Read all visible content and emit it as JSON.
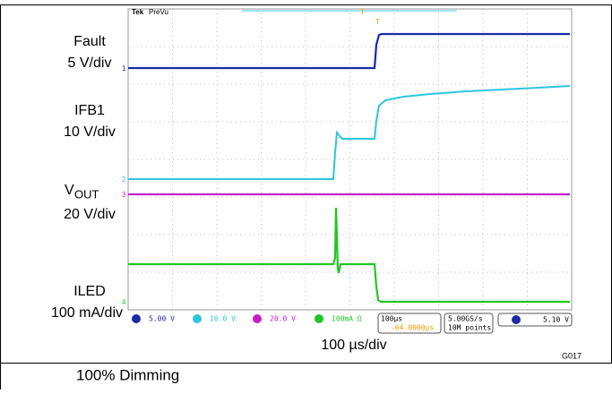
{
  "scope": {
    "brand": "Tek",
    "mode": "PreVu",
    "trigger_marker": "T",
    "channel_markers": [
      "1",
      "2",
      "3",
      "4"
    ]
  },
  "labels": {
    "fault": "Fault",
    "fault_scale": "5 V/div",
    "ifb1": "IFB1",
    "ifb1_scale": "10 V/div",
    "vout": "V",
    "vout_sub": "OUT",
    "vout_scale": "20 V/div",
    "iled": "ILED",
    "iled_scale": "100 mA/div"
  },
  "status_bar": {
    "ch1": "5.00 V",
    "ch2": "10.0 V",
    "ch3": "20.0 V",
    "ch4": "100mA Ω",
    "timebase": "100µs",
    "delay": "-64.0000µs",
    "sample_rate": "5.00GS/s",
    "record": "10M points",
    "trigger_level": "5.10 V"
  },
  "caption": {
    "timebase": "100 µs/div",
    "figure_id": "G017",
    "title": "100% Dimming"
  }
}
